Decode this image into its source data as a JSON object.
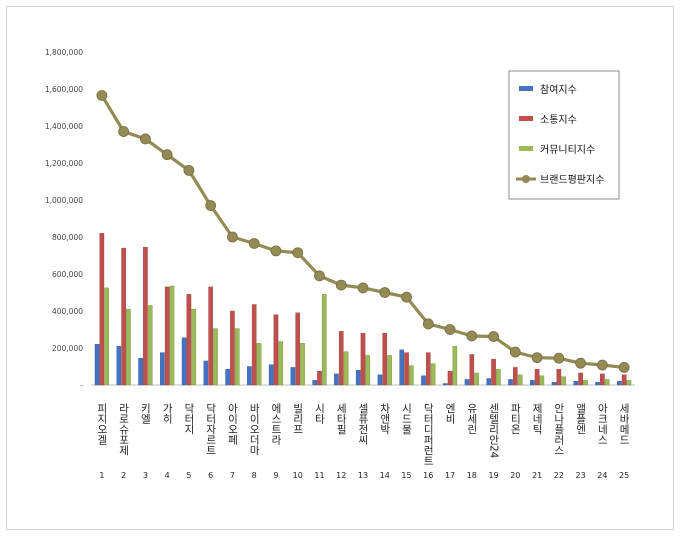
{
  "chart_data": {
    "type": "bar",
    "categories": [
      "피지오겔",
      "라로슈포제",
      "키엘",
      "가히",
      "닥터지",
      "닥터자르트",
      "아이오페",
      "바이오더마",
      "에스트라",
      "빌리프",
      "시타",
      "세타필",
      "셀퓨전씨",
      "차앤박",
      "시드물",
      "닥터디퍼런트",
      "엔비",
      "유세린",
      "센텔리안24",
      "파티온",
      "제네틱",
      "안나플러스",
      "앨플엔",
      "아크네스",
      "세바메드"
    ],
    "index_labels": [
      "1",
      "2",
      "3",
      "4",
      "5",
      "6",
      "7",
      "8",
      "9",
      "10",
      "11",
      "12",
      "13",
      "14",
      "15",
      "16",
      "17",
      "18",
      "19",
      "20",
      "21",
      "22",
      "23",
      "24",
      "25"
    ],
    "ylim": [
      0,
      1800000
    ],
    "y_ticks": [
      "-",
      "200,000",
      "400,000",
      "600,000",
      "800,000",
      "1,000,000",
      "1,200,000",
      "1,400,000",
      "1,600,000",
      "1,800,000"
    ],
    "legend_position": "top-right",
    "grid": false,
    "series": [
      {
        "name": "참여지수",
        "type": "bar",
        "color": "#4472c4",
        "values": [
          220000,
          210000,
          145000,
          175000,
          255000,
          130000,
          85000,
          100000,
          110000,
          95000,
          25000,
          60000,
          80000,
          55000,
          190000,
          50000,
          8000,
          30000,
          35000,
          30000,
          25000,
          15000,
          20000,
          15000,
          20000
        ]
      },
      {
        "name": "소통지수",
        "type": "bar",
        "color": "#c0504d",
        "values": [
          820000,
          740000,
          745000,
          530000,
          490000,
          530000,
          400000,
          435000,
          380000,
          390000,
          75000,
          290000,
          280000,
          280000,
          175000,
          175000,
          75000,
          165000,
          140000,
          95000,
          85000,
          85000,
          65000,
          60000,
          55000
        ]
      },
      {
        "name": "커뮤니티지수",
        "type": "bar",
        "color": "#9bbb59",
        "values": [
          525000,
          410000,
          430000,
          535000,
          410000,
          305000,
          305000,
          225000,
          235000,
          225000,
          490000,
          180000,
          160000,
          160000,
          105000,
          115000,
          210000,
          65000,
          85000,
          55000,
          50000,
          45000,
          25000,
          30000,
          25000
        ]
      },
      {
        "name": "브랜드평판지수",
        "type": "line",
        "color": "#948a54",
        "values": [
          1565000,
          1370000,
          1330000,
          1245000,
          1160000,
          970000,
          800000,
          765000,
          725000,
          715000,
          590000,
          540000,
          525000,
          500000,
          475000,
          330000,
          300000,
          265000,
          262000,
          178000,
          148000,
          145000,
          118000,
          108000,
          95000
        ]
      }
    ]
  }
}
